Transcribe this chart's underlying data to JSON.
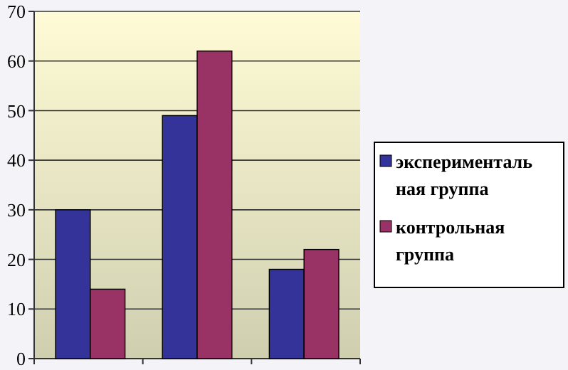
{
  "chart_data": {
    "type": "bar",
    "categories": [
      null,
      null,
      null
    ],
    "series": [
      {
        "name": "экспериментальная группа",
        "color": "#333399",
        "values": [
          30,
          49,
          18
        ]
      },
      {
        "name": "контрольная группа",
        "color": "#993366",
        "values": [
          14,
          62,
          22
        ]
      }
    ],
    "ylim": [
      0,
      70
    ],
    "yticks": [
      0,
      10,
      20,
      30,
      40,
      50,
      60,
      70
    ],
    "grid": "y",
    "legend": "right"
  }
}
